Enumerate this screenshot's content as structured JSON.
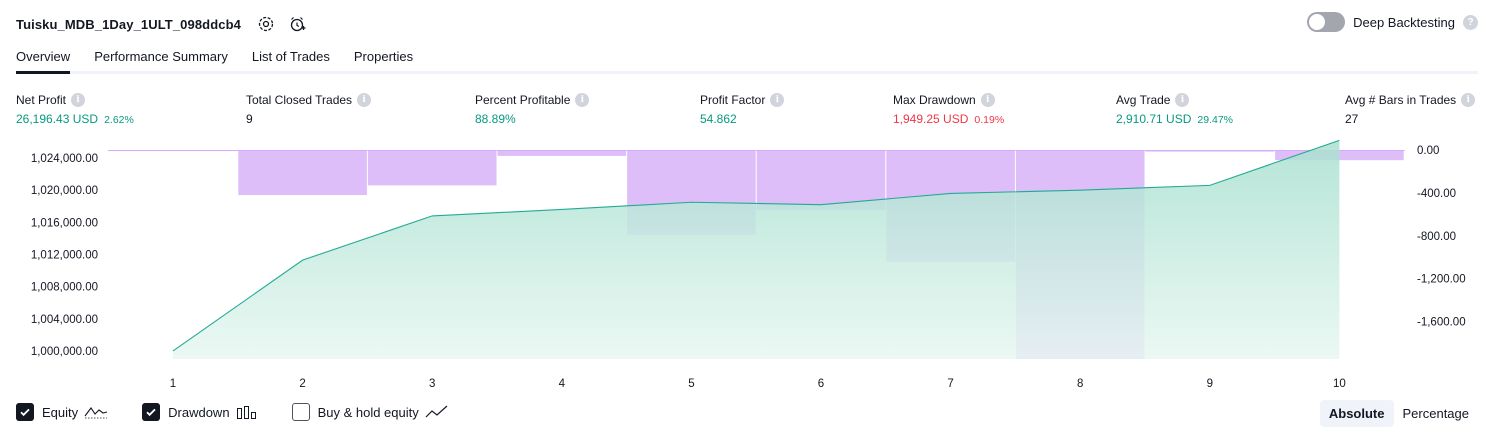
{
  "header": {
    "strategy_name": "Tuisku_MDB_1Day_1ULT_098ddcb4",
    "settings_icon": "gear-icon",
    "alert_icon": "add-alert-clock-icon",
    "deep_backtesting_label": "Deep Backtesting",
    "deep_backtesting_enabled": false,
    "help_glyph": "?"
  },
  "tabs": [
    {
      "label": "Overview",
      "active": true
    },
    {
      "label": "Performance Summary",
      "active": false
    },
    {
      "label": "List of Trades",
      "active": false
    },
    {
      "label": "Properties",
      "active": false
    }
  ],
  "metrics": {
    "info_glyph": "i",
    "net_profit": {
      "label": "Net Profit",
      "value": "26,196.43 USD",
      "pct": "2.62%"
    },
    "total_closed_trades": {
      "label": "Total Closed Trades",
      "value": "9"
    },
    "percent_profitable": {
      "label": "Percent Profitable",
      "value": "88.89%"
    },
    "profit_factor": {
      "label": "Profit Factor",
      "value": "54.862"
    },
    "max_drawdown": {
      "label": "Max Drawdown",
      "value": "1,949.25 USD",
      "pct": "0.19%"
    },
    "avg_trade": {
      "label": "Avg Trade",
      "value": "2,910.71 USD",
      "pct": "29.47%"
    },
    "avg_bars": {
      "label": "Avg # Bars in Trades",
      "value": "27"
    }
  },
  "colors": {
    "positive": "#089981",
    "negative": "#f23645",
    "equity_line": "#22ab94",
    "equity_fill_top": "#a8e0cf",
    "equity_fill_bottom": "#e8f7f2",
    "drawdown_fill": "#d1a8f7"
  },
  "chart_data": {
    "type": "area",
    "x": [
      "1",
      "2",
      "3",
      "4",
      "5",
      "6",
      "7",
      "8",
      "9",
      "10"
    ],
    "series": [
      {
        "name": "Equity",
        "axis": "left",
        "values": [
          1000000,
          1011300,
          1016800,
          1017600,
          1018500,
          1018200,
          1019600,
          1020000,
          1020600,
          1026200
        ]
      },
      {
        "name": "Drawdown",
        "axis": "right",
        "type": "bar",
        "values": [
          -10,
          -420,
          -330,
          -55,
          -790,
          -560,
          -1040,
          -1949.25,
          -15,
          -95
        ]
      }
    ],
    "left_axis": {
      "ylim": [
        999000,
        1025000
      ],
      "ticks": [
        "1,000,000.00",
        "1,004,000.00",
        "1,008,000.00",
        "1,012,000.00",
        "1,016,000.00",
        "1,020,000.00",
        "1,024,000.00"
      ],
      "tick_values": [
        1000000,
        1004000,
        1008000,
        1012000,
        1016000,
        1020000,
        1024000
      ]
    },
    "right_axis": {
      "ylim": [
        -1949.25,
        0
      ],
      "ticks": [
        "0.00",
        "-400.00",
        "-800.00",
        "-1,200.00",
        "-1,600.00"
      ],
      "tick_values": [
        0,
        -400,
        -800,
        -1200,
        -1600
      ]
    },
    "grid": false
  },
  "legend": [
    {
      "label": "Equity",
      "checked": true,
      "icon": "equity-line-icon"
    },
    {
      "label": "Drawdown",
      "checked": true,
      "icon": "drawdown-bars-icon"
    },
    {
      "label": "Buy & hold equity",
      "checked": false,
      "icon": "buy-hold-line-icon"
    }
  ],
  "view_modes": [
    {
      "label": "Absolute",
      "active": true
    },
    {
      "label": "Percentage",
      "active": false
    }
  ]
}
